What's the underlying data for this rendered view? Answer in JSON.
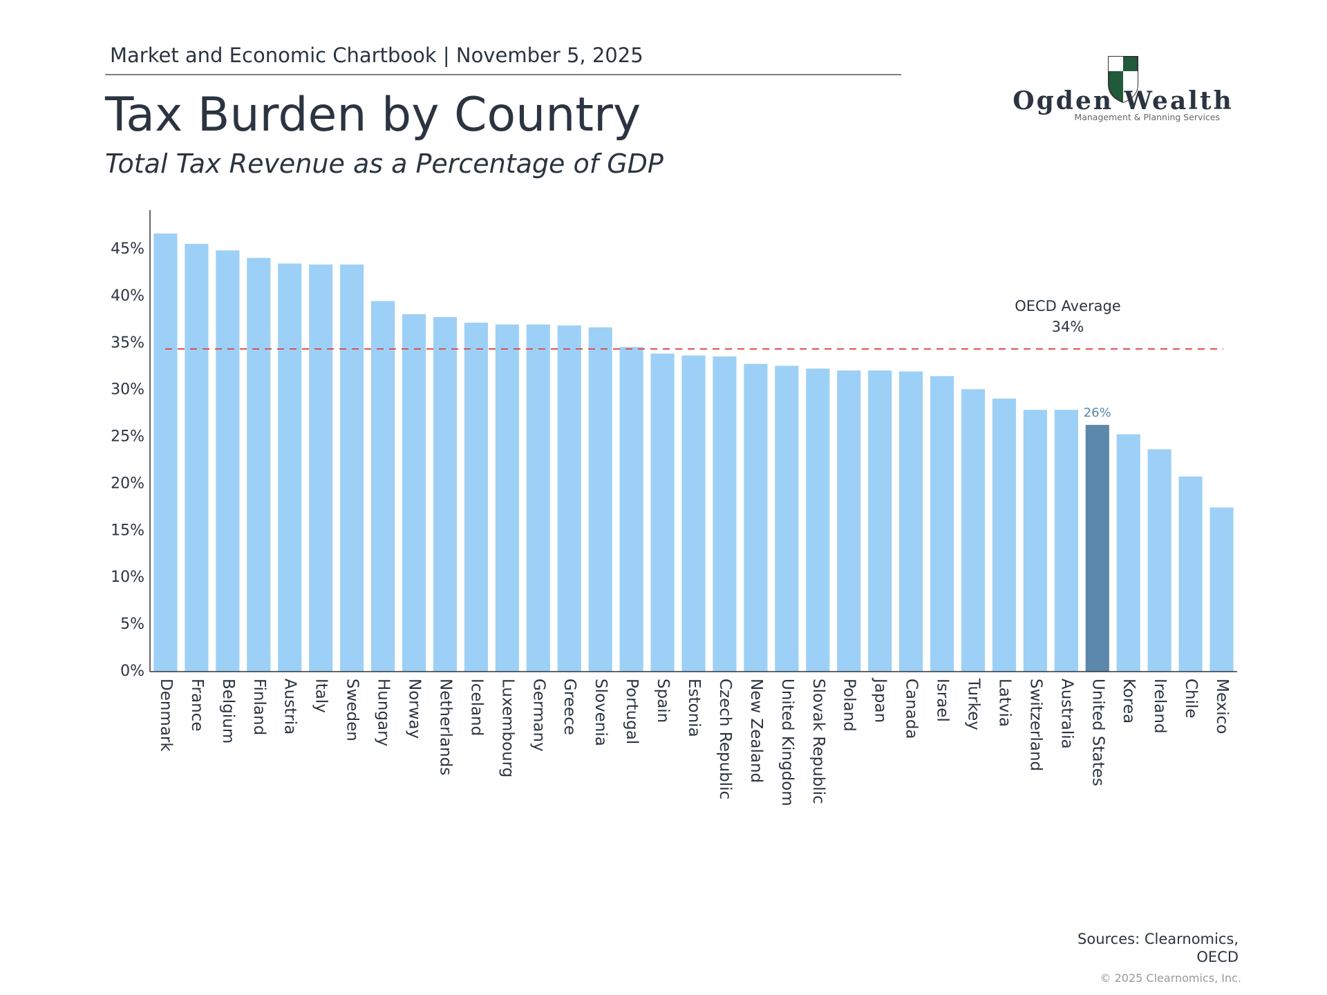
{
  "header": "Market and Economic Chartbook | November 5, 2025",
  "logo": {
    "name": "Ogden Wealth",
    "tagline": "Management & Planning Services"
  },
  "sources": [
    "Sources: Clearnomics,",
    "OECD"
  ],
  "copyright": "© 2025 Clearnomics, Inc.",
  "chart_data": {
    "type": "bar",
    "title": "Tax Burden by Country",
    "subtitle": "Total Tax Revenue as a Percentage of GDP",
    "categories": [
      "Denmark",
      "France",
      "Belgium",
      "Finland",
      "Austria",
      "Italy",
      "Sweden",
      "Hungary",
      "Norway",
      "Netherlands",
      "Iceland",
      "Luxembourg",
      "Germany",
      "Greece",
      "Slovenia",
      "Portugal",
      "Spain",
      "Estonia",
      "Czech Republic",
      "New Zealand",
      "United Kingdom",
      "Slovak Republic",
      "Poland",
      "Japan",
      "Canada",
      "Israel",
      "Turkey",
      "Latvia",
      "Switzerland",
      "Australia",
      "United States",
      "Korea",
      "Ireland",
      "Chile",
      "Mexico"
    ],
    "values": [
      46.7,
      45.6,
      44.9,
      44.1,
      43.5,
      43.4,
      43.4,
      39.5,
      38.1,
      37.8,
      37.2,
      37.0,
      37.0,
      36.9,
      36.7,
      34.6,
      33.9,
      33.7,
      33.6,
      32.8,
      32.6,
      32.3,
      32.1,
      32.1,
      32.0,
      31.5,
      30.1,
      29.1,
      27.9,
      27.9,
      26.3,
      25.3,
      23.7,
      20.8,
      17.5
    ],
    "value_labels": [
      null,
      null,
      null,
      null,
      null,
      null,
      null,
      null,
      null,
      null,
      null,
      null,
      null,
      null,
      null,
      null,
      null,
      null,
      null,
      null,
      null,
      null,
      null,
      null,
      null,
      null,
      null,
      null,
      null,
      null,
      "26%",
      null,
      null,
      null,
      null
    ],
    "colors": [
      "#9dd0f6",
      "#9dd0f6",
      "#9dd0f6",
      "#9dd0f6",
      "#9dd0f6",
      "#9dd0f6",
      "#9dd0f6",
      "#9dd0f6",
      "#9dd0f6",
      "#9dd0f6",
      "#9dd0f6",
      "#9dd0f6",
      "#9dd0f6",
      "#9dd0f6",
      "#9dd0f6",
      "#9dd0f6",
      "#9dd0f6",
      "#9dd0f6",
      "#9dd0f6",
      "#9dd0f6",
      "#9dd0f6",
      "#9dd0f6",
      "#9dd0f6",
      "#9dd0f6",
      "#9dd0f6",
      "#9dd0f6",
      "#9dd0f6",
      "#9dd0f6",
      "#9dd0f6",
      "#9dd0f6",
      "#5b87ab",
      "#9dd0f6",
      "#9dd0f6",
      "#9dd0f6",
      "#9dd0f6"
    ],
    "ylim": [
      0,
      49.2
    ],
    "yticks": [
      {
        "value": 0,
        "label": "0%"
      },
      {
        "value": 5,
        "label": "5%"
      },
      {
        "value": 10,
        "label": "10%"
      },
      {
        "value": 15,
        "label": "15%"
      },
      {
        "value": 20,
        "label": "20%"
      },
      {
        "value": 25,
        "label": "25%"
      },
      {
        "value": 30,
        "label": "30%"
      },
      {
        "value": 35,
        "label": "35%"
      },
      {
        "value": 40,
        "label": "40%"
      },
      {
        "value": 45,
        "label": "45%"
      }
    ],
    "reference_line": {
      "label": "OECD Average",
      "value": 34.4,
      "value_label": "34%",
      "color": "#d9534f"
    }
  }
}
